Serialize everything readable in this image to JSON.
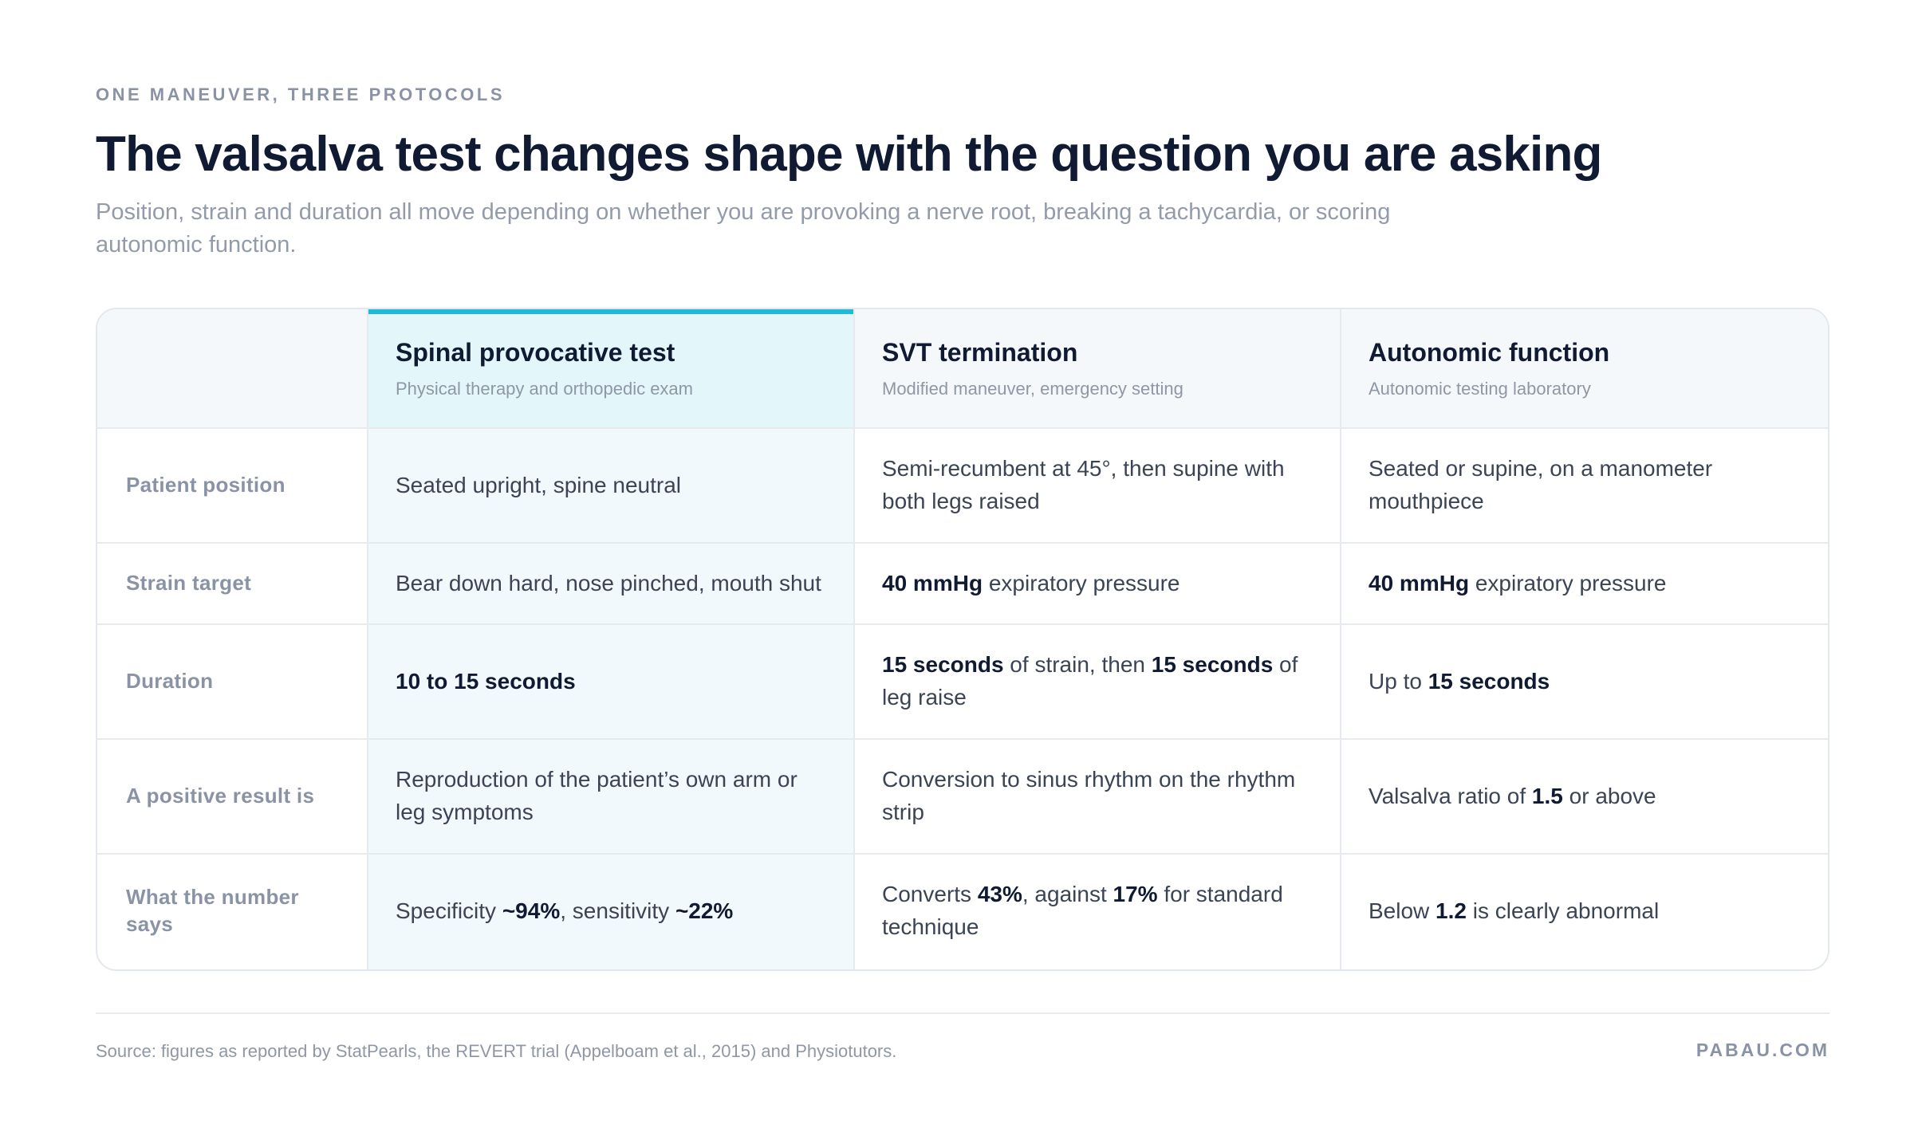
{
  "eyebrow": "ONE MANEUVER, THREE PROTOCOLS",
  "title": "The valsalva test changes shape with the question you are asking",
  "subtitle": "Position, strain and duration all move depending on whether you are provoking a nerve root, breaking a tachycardia, or scoring autonomic function.",
  "colors": {
    "accent": "#1fbad6",
    "highlight_column": "#f2f9fc",
    "highlight_header": "#e3f6fa",
    "header_bg": "#f4f8fb",
    "text_dark": "#101b33",
    "text_muted": "#8a93a5"
  },
  "table": {
    "highlighted_column": 0,
    "columns": [
      {
        "title": "Spinal provocative test",
        "subtitle": "Physical therapy and orthopedic exam"
      },
      {
        "title": "SVT termination",
        "subtitle": "Modified maneuver, emergency setting"
      },
      {
        "title": "Autonomic function",
        "subtitle": "Autonomic testing laboratory"
      }
    ],
    "rows": [
      {
        "label": "Patient position",
        "cells": [
          [
            {
              "t": "Seated upright, spine neutral"
            }
          ],
          [
            {
              "t": "Semi-recumbent at 45°, then supine with both legs raised"
            }
          ],
          [
            {
              "t": "Seated or supine, on a manometer mouthpiece"
            }
          ]
        ]
      },
      {
        "label": "Strain target",
        "cells": [
          [
            {
              "t": "Bear down hard, nose pinched, mouth shut"
            }
          ],
          [
            {
              "t": "40 mmHg",
              "b": true
            },
            {
              "t": " expiratory pressure"
            }
          ],
          [
            {
              "t": "40 mmHg",
              "b": true
            },
            {
              "t": " expiratory pressure"
            }
          ]
        ]
      },
      {
        "label": "Duration",
        "cells": [
          [
            {
              "t": "10 to 15 seconds",
              "b": true
            }
          ],
          [
            {
              "t": "15 seconds",
              "b": true
            },
            {
              "t": " of strain, then "
            },
            {
              "t": "15 seconds",
              "b": true
            },
            {
              "t": " of leg raise"
            }
          ],
          [
            {
              "t": "Up to "
            },
            {
              "t": "15 seconds",
              "b": true
            }
          ]
        ]
      },
      {
        "label": "A positive result is",
        "cells": [
          [
            {
              "t": "Reproduction of the patient’s own arm or leg symptoms"
            }
          ],
          [
            {
              "t": "Conversion to sinus rhythm on the rhythm strip"
            }
          ],
          [
            {
              "t": "Valsalva ratio of "
            },
            {
              "t": "1.5",
              "b": true
            },
            {
              "t": " or above"
            }
          ]
        ]
      },
      {
        "label": "What the number says",
        "cells": [
          [
            {
              "t": "Specificity "
            },
            {
              "t": "~94%",
              "b": true
            },
            {
              "t": ", sensitivity "
            },
            {
              "t": "~22%",
              "b": true
            }
          ],
          [
            {
              "t": "Converts "
            },
            {
              "t": "43%",
              "b": true
            },
            {
              "t": ", against "
            },
            {
              "t": "17%",
              "b": true
            },
            {
              "t": " for standard technique"
            }
          ],
          [
            {
              "t": "Below "
            },
            {
              "t": "1.2",
              "b": true
            },
            {
              "t": " is clearly abnormal"
            }
          ]
        ]
      }
    ]
  },
  "footer": {
    "source": "Source: figures as reported by StatPearls, the REVERT trial (Appelboam et al., 2015) and Physiotutors.",
    "brand": "PABAU.COM"
  }
}
